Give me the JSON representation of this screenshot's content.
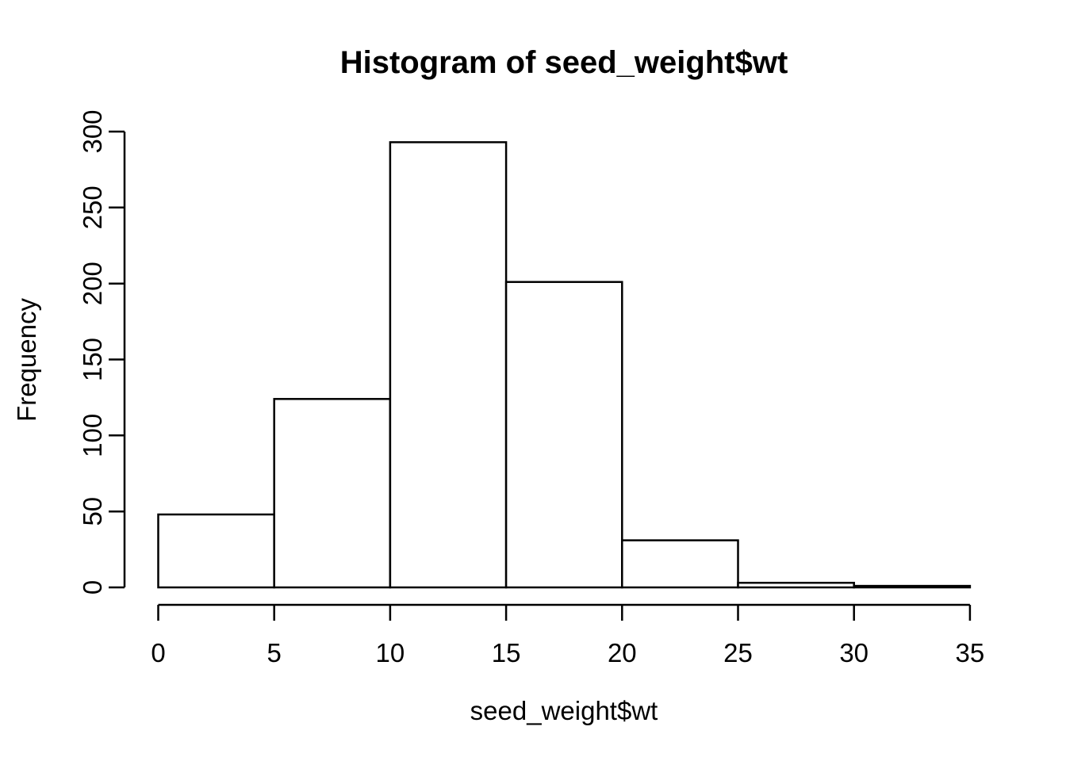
{
  "page": {
    "background_color": "#ffffff",
    "foreground_color": "#000000"
  },
  "chart_data": {
    "type": "bar",
    "chart_kind": "histogram",
    "title": "Histogram of seed_weight$wt",
    "xlabel": "seed_weight$wt",
    "ylabel": "Frequency",
    "bin_edges": [
      0,
      5,
      10,
      15,
      20,
      25,
      30,
      35
    ],
    "counts": [
      48,
      124,
      293,
      201,
      31,
      3,
      1
    ],
    "x_ticks": [
      0,
      5,
      10,
      15,
      20,
      25,
      30,
      35
    ],
    "y_ticks": [
      0,
      50,
      100,
      150,
      200,
      250,
      300
    ],
    "xlim": [
      0,
      35
    ],
    "ylim": [
      0,
      300
    ],
    "bar_fill": "#ffffff",
    "bar_stroke": "#000000",
    "axis_color": "#000000",
    "grid": false,
    "legend": null
  }
}
